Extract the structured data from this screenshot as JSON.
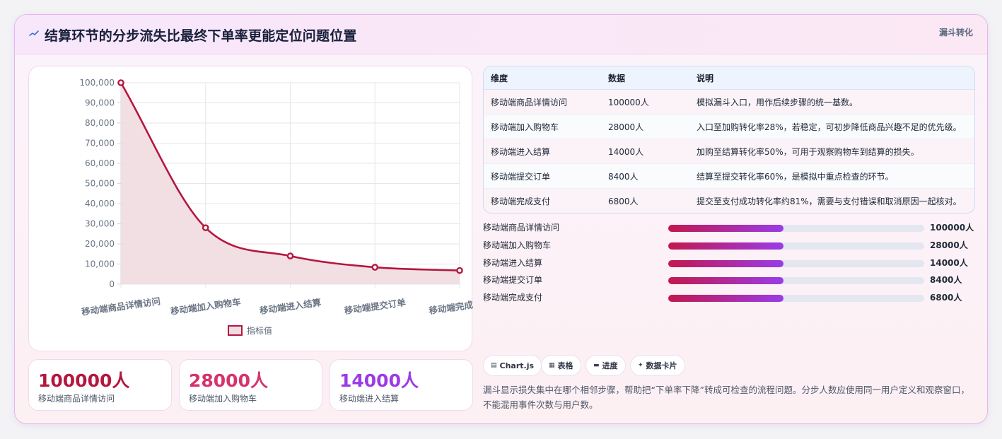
{
  "header": {
    "title": "结算环节的分步流失比最终下单率更能定位问题位置",
    "badge": "漏斗转化"
  },
  "chart_data": {
    "type": "line",
    "categories": [
      "移动端商品详情访问",
      "移动端加入购物车",
      "移动端进入结算",
      "移动端提交订单",
      "移动端完成支付"
    ],
    "series": [
      {
        "name": "指标值",
        "values": [
          100000,
          28000,
          14000,
          8400,
          6800
        ]
      }
    ],
    "ylim": [
      0,
      100000
    ],
    "yticks": [
      "100,000",
      "90,000",
      "80,000",
      "70,000",
      "60,000",
      "50,000",
      "40,000",
      "30,000",
      "20,000",
      "10,000",
      "0"
    ],
    "fill": true,
    "grid": true,
    "legend": "bottom",
    "colors": {
      "line": "#b5173f",
      "fill": "#f0dde3"
    }
  },
  "stats": [
    {
      "value": "100000人",
      "label": "移动端商品详情访问",
      "color": "#b5173f"
    },
    {
      "value": "28000人",
      "label": "移动端加入购物车",
      "color": "#d6336c"
    },
    {
      "value": "14000人",
      "label": "移动端进入结算",
      "color": "#9b3be8"
    }
  ],
  "table": {
    "headers": [
      "维度",
      "数据",
      "说明"
    ],
    "rows": [
      [
        "移动端商品详情访问",
        "100000人",
        "模拟漏斗入口，用作后续步骤的统一基数。"
      ],
      [
        "移动端加入购物车",
        "28000人",
        "入口至加购转化率28%，若稳定，可初步降低商品兴趣不足的优先级。"
      ],
      [
        "移动端进入结算",
        "14000人",
        "加购至结算转化率50%，可用于观察购物车到结算的损失。"
      ],
      [
        "移动端提交订单",
        "8400人",
        "结算至提交转化率60%，是模拟中重点检查的环节。"
      ],
      [
        "移动端完成支付",
        "6800人",
        "提交至支付成功转化率约81%，需要与支付错误和取消原因一起核对。"
      ]
    ]
  },
  "progress": [
    {
      "label": "移动端商品详情访问",
      "value": "100000人",
      "fill": 0.45
    },
    {
      "label": "移动端加入购物车",
      "value": "28000人",
      "fill": 0.45
    },
    {
      "label": "移动端进入结算",
      "value": "14000人",
      "fill": 0.45
    },
    {
      "label": "移动端提交订单",
      "value": "8400人",
      "fill": 0.45
    },
    {
      "label": "移动端完成支付",
      "value": "6800人",
      "fill": 0.45
    }
  ],
  "tags": [
    {
      "icon": "chart-icon",
      "glyph": "▤",
      "label": "Chart.js"
    },
    {
      "icon": "table-icon",
      "glyph": "▦",
      "label": "表格"
    },
    {
      "icon": "progress-icon",
      "glyph": "▬",
      "label": "进度"
    },
    {
      "icon": "sparkle-icon",
      "glyph": "✦",
      "label": "数据卡片"
    }
  ],
  "description": "漏斗显示损失集中在哪个相邻步骤，帮助把“下单率下降”转成可检查的流程问题。分步人数应使用同一用户定义和观察窗口，不能混用事件次数与用户数。"
}
